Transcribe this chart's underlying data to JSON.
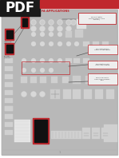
{
  "bg_color": "#ffffff",
  "header_bg": "#1a1a1a",
  "header_text": "PDF",
  "header_text_color": "#ffffff",
  "banner_color": "#c0272d",
  "diagram_bg": "#b8b8b8",
  "box_red": "#c0272d",
  "annotation_red": "#c0272d",
  "line_dark": "#555555",
  "device_light": "#d8d8d8",
  "device_lighter": "#e5e5e5",
  "device_dark": "#888888",
  "white": "#ffffff",
  "black": "#111111",
  "text_dark": "#333333",
  "text_small_color": "#444444"
}
